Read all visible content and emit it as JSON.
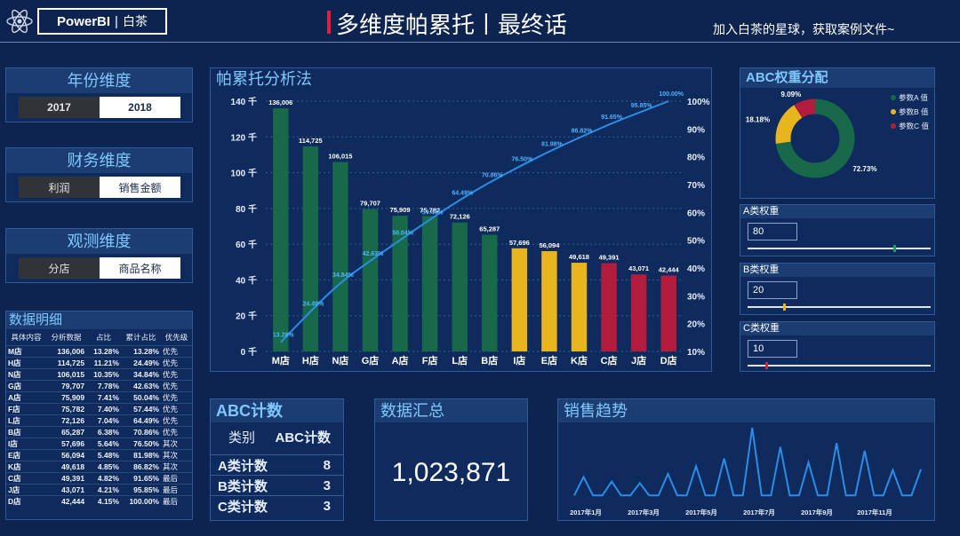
{
  "header": {
    "logo_brand": "PowerBI",
    "logo_sep": "|",
    "logo_name": "白茶",
    "title": "多维度帕累托丨最终话",
    "link": "加入白茶的星球，获取案例文件~"
  },
  "filters": [
    {
      "title": "年份维度",
      "options": [
        "2017",
        "2018"
      ],
      "selected": 1
    },
    {
      "title": "财务维度",
      "options": [
        "利润",
        "销售金额"
      ],
      "selected": 1
    },
    {
      "title": "观测维度",
      "options": [
        "分店",
        "商品名称"
      ],
      "selected": 1
    }
  ],
  "detail": {
    "title": "数据明细",
    "columns": [
      "具体内容",
      "分析数据",
      "占比",
      "累计占比",
      "优先级"
    ],
    "rows": [
      [
        "M店",
        "136,006",
        "13.28%",
        "13.28%",
        "优先"
      ],
      [
        "H店",
        "114,725",
        "11.21%",
        "24.49%",
        "优先"
      ],
      [
        "N店",
        "106,015",
        "10.35%",
        "34.84%",
        "优先"
      ],
      [
        "G店",
        "79,707",
        "7.78%",
        "42.63%",
        "优先"
      ],
      [
        "A店",
        "75,909",
        "7.41%",
        "50.04%",
        "优先"
      ],
      [
        "F店",
        "75,782",
        "7.40%",
        "57.44%",
        "优先"
      ],
      [
        "L店",
        "72,126",
        "7.04%",
        "64.49%",
        "优先"
      ],
      [
        "B店",
        "65,287",
        "6.38%",
        "70.86%",
        "优先"
      ],
      [
        "I店",
        "57,696",
        "5.64%",
        "76.50%",
        "其次"
      ],
      [
        "E店",
        "56,094",
        "5.48%",
        "81.98%",
        "其次"
      ],
      [
        "K店",
        "49,618",
        "4.85%",
        "86.82%",
        "其次"
      ],
      [
        "C店",
        "49,391",
        "4.82%",
        "91.65%",
        "最后"
      ],
      [
        "J店",
        "43,071",
        "4.21%",
        "95.85%",
        "最后"
      ],
      [
        "D店",
        "42,444",
        "4.15%",
        "100.00%",
        "最后"
      ]
    ]
  },
  "pareto": {
    "title": "帕累托分析法"
  },
  "chart_data": [
    {
      "type": "bar",
      "categories": [
        "M店",
        "H店",
        "N店",
        "G店",
        "A店",
        "F店",
        "L店",
        "B店",
        "I店",
        "E店",
        "K店",
        "C店",
        "J店",
        "D店"
      ],
      "values": [
        136006,
        114725,
        106015,
        79707,
        75909,
        75782,
        72126,
        65287,
        57696,
        56094,
        49618,
        49391,
        43071,
        42444
      ],
      "value_labels": [
        "136,006",
        "114,725",
        "106,015",
        "79,707",
        "75,909",
        "75,782",
        "72,126",
        "65,287",
        "57,696",
        "56,094",
        "49,618",
        "49,391",
        "43,071",
        "42,444"
      ],
      "cumulative_pct": [
        13.28,
        24.49,
        34.84,
        42.63,
        50.04,
        57.44,
        64.49,
        70.86,
        76.5,
        81.98,
        86.82,
        91.65,
        95.85,
        100.0
      ],
      "cumulative_labels": [
        "13.28%",
        "24.49%",
        "34.84%",
        "42.63%",
        "50.04%",
        "57.44%",
        "64.49%",
        "70.86%",
        "76.50%",
        "81.98%",
        "86.82%",
        "91.65%",
        "95.85%",
        "100.00%"
      ],
      "classes": [
        "A",
        "A",
        "A",
        "A",
        "A",
        "A",
        "A",
        "A",
        "B",
        "B",
        "B",
        "C",
        "C",
        "C"
      ],
      "class_colors": {
        "A": "#17694a",
        "B": "#e8b51f",
        "C": "#b21d3e"
      },
      "line_color": "#2b8de8",
      "y_left_ticks": [
        0,
        20,
        40,
        60,
        80,
        100,
        120,
        140
      ],
      "y_left_tick_labels": [
        "0 千",
        "20 千",
        "40 千",
        "60 千",
        "80 千",
        "100 千",
        "120 千",
        "140 千"
      ],
      "y_left_lim": [
        0,
        140000
      ],
      "y_right_ticks": [
        10,
        20,
        30,
        40,
        50,
        60,
        70,
        80,
        90,
        100
      ],
      "y_right_tick_labels": [
        "10%",
        "20%",
        "30%",
        "40%",
        "50%",
        "60%",
        "70%",
        "80%",
        "90%",
        "100%"
      ],
      "y_right_lim": [
        10,
        100
      ],
      "grid": true
    },
    {
      "type": "pie",
      "title": "ABC权重分配",
      "labels": [
        "参数A 值",
        "参数B 值",
        "参数C 值"
      ],
      "values": [
        72.73,
        18.18,
        9.09
      ],
      "value_labels": [
        "72.73%",
        "18.18%",
        "9.09%"
      ],
      "colors": [
        "#17694a",
        "#e8b51f",
        "#b21d3e"
      ],
      "legend": "right"
    },
    {
      "type": "line",
      "title": "销售趋势",
      "x_tick_labels": [
        "2017年1月",
        "2017年3月",
        "2017年5月",
        "2017年7月",
        "2017年9月",
        "2017年11月"
      ],
      "values": [
        2,
        26,
        2,
        2,
        20,
        2,
        2,
        18,
        2,
        2,
        30,
        2,
        2,
        40,
        2,
        2,
        50,
        2,
        2,
        90,
        2,
        2,
        65,
        2,
        2,
        45,
        2,
        2,
        70,
        2,
        2,
        60,
        2,
        2,
        35,
        2,
        2,
        36
      ],
      "color": "#2b8de8"
    }
  ],
  "weights": {
    "title": "ABC权重分配",
    "items": [
      {
        "title": "A类权重",
        "value": "80",
        "level": 0.8,
        "knob_color": "#17a05a"
      },
      {
        "title": "B类权重",
        "value": "20",
        "level": 0.2,
        "knob_color": "#e8b51f"
      },
      {
        "title": "C类权重",
        "value": "10",
        "level": 0.1,
        "knob_color": "#d12a3e"
      }
    ]
  },
  "abc_count": {
    "title": "ABC计数",
    "col1": "类别",
    "col2": "ABC计数",
    "rows": [
      [
        "A类计数",
        "8"
      ],
      [
        "B类计数",
        "3"
      ],
      [
        "C类计数",
        "3"
      ]
    ]
  },
  "summary": {
    "title": "数据汇总",
    "value": "1,023,871"
  },
  "trend": {
    "title": "销售趋势"
  }
}
